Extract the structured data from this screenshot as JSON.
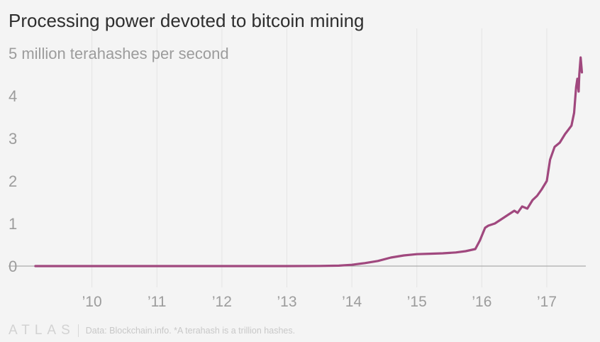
{
  "chart_data": {
    "type": "line",
    "title": "Processing power devoted to bitcoin mining",
    "ylabel": "",
    "xlabel": "",
    "y_top_tick_label": "5 million terahashes per second",
    "yticks": [
      0,
      1,
      2,
      3,
      4
    ],
    "ylim": [
      0,
      5
    ],
    "xlim": [
      2009.0,
      2017.6
    ],
    "xticks": [
      {
        "value": 2010,
        "label": "’10"
      },
      {
        "value": 2011,
        "label": "’11"
      },
      {
        "value": 2012,
        "label": "’12"
      },
      {
        "value": 2013,
        "label": "’13"
      },
      {
        "value": 2014,
        "label": "’14"
      },
      {
        "value": 2015,
        "label": "’15"
      },
      {
        "value": 2016,
        "label": "’16"
      },
      {
        "value": 2017,
        "label": "’17"
      }
    ],
    "grid": {
      "vertical": true,
      "horizontal": false
    },
    "series": [
      {
        "color": "#a0487e",
        "x": [
          2009.13,
          2010.0,
          2011.0,
          2012.0,
          2013.0,
          2013.5,
          2013.8,
          2014.0,
          2014.2,
          2014.4,
          2014.6,
          2014.8,
          2015.0,
          2015.2,
          2015.4,
          2015.6,
          2015.75,
          2015.9,
          2015.97,
          2016.05,
          2016.1,
          2016.2,
          2016.3,
          2016.4,
          2016.5,
          2016.55,
          2016.62,
          2016.7,
          2016.78,
          2016.85,
          2016.92,
          2017.0,
          2017.05,
          2017.12,
          2017.2,
          2017.28,
          2017.33,
          2017.38,
          2017.42,
          2017.45,
          2017.47,
          2017.49,
          2017.5,
          2017.52,
          2017.54
        ],
        "y": [
          0,
          0,
          0,
          0,
          0,
          0.003,
          0.01,
          0.03,
          0.07,
          0.12,
          0.2,
          0.25,
          0.28,
          0.29,
          0.3,
          0.32,
          0.35,
          0.4,
          0.6,
          0.9,
          0.95,
          1.0,
          1.1,
          1.2,
          1.3,
          1.25,
          1.4,
          1.35,
          1.55,
          1.65,
          1.8,
          2.0,
          2.5,
          2.8,
          2.9,
          3.1,
          3.2,
          3.3,
          3.6,
          4.2,
          4.4,
          4.1,
          4.5,
          4.9,
          4.55
        ]
      }
    ]
  },
  "footer": {
    "logo": "ATLAS",
    "source": "Data: Blockchain.info. *A terahash is a trillion hashes."
  }
}
